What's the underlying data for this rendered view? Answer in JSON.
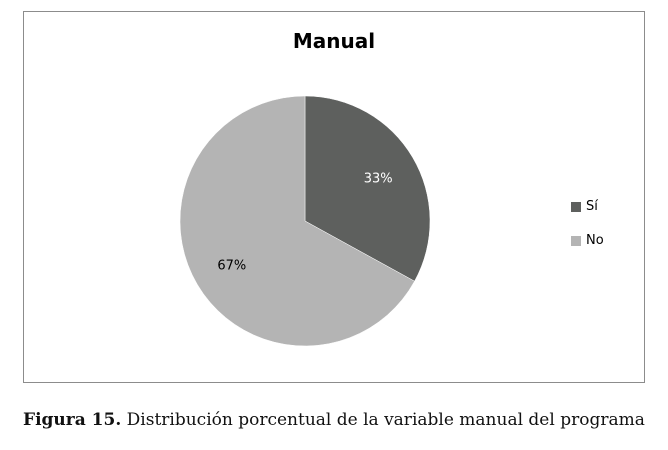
{
  "chart_data": {
    "type": "pie",
    "title": "Manual",
    "categories": [
      "Sí",
      "No"
    ],
    "values": [
      33,
      67
    ],
    "labels": [
      "33%",
      "67%"
    ],
    "colors": [
      "#5e605e",
      "#b4b4b4"
    ],
    "label_colors": [
      "#ffffff",
      "#000000"
    ],
    "legend_position": "right"
  },
  "caption": {
    "label": "Figura 15.",
    "text": "Distribución porcentual de la variable manual del programa"
  }
}
